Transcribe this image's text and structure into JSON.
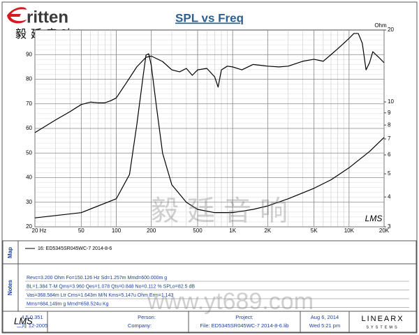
{
  "chart_data": {
    "type": "line",
    "title": "SPL vs Freq",
    "y2_label": "Ohm",
    "watermark": "LMS",
    "x_scale": "log",
    "y2_scale": "log",
    "grid": true,
    "minor_grid": true,
    "xlim": [
      20,
      20000
    ],
    "xticks": [
      {
        "value": 20,
        "label": "20 Hz"
      },
      50,
      100,
      200,
      500,
      {
        "value": 1000,
        "label": "1K"
      },
      {
        "value": 2000,
        "label": "2K"
      },
      {
        "value": 5000,
        "label": "5K"
      },
      {
        "value": 10000,
        "label": "10K"
      },
      {
        "value": 20000,
        "label": "20K"
      }
    ],
    "ylim": [
      20,
      100
    ],
    "yticks": [
      20,
      30,
      40,
      50,
      60,
      70,
      80,
      90
    ],
    "y2lim": [
      3,
      20
    ],
    "y2ticks": [
      3,
      4,
      5,
      6,
      7,
      8,
      9,
      10,
      20
    ],
    "series": [
      {
        "color": "#000000",
        "x": [
          20,
          30,
          40,
          50,
          60,
          70,
          80,
          90,
          100,
          120,
          150,
          180,
          200,
          250,
          300,
          350,
          400,
          450,
          500,
          600,
          700,
          750,
          800,
          900,
          1000,
          1200,
          1500,
          2000,
          2500,
          3000,
          4000,
          5000,
          6000,
          7000,
          8000,
          9000,
          10000,
          11000,
          12000,
          13000,
          14000,
          15000,
          16000,
          18000,
          20000
        ],
        "values": [
          58.3,
          63.4,
          66.8,
          69.7,
          70.7,
          70.4,
          70.4,
          71.3,
          72.4,
          78,
          85,
          88.9,
          89.4,
          87.2,
          83.8,
          83,
          84.4,
          81.6,
          83.8,
          84.4,
          81,
          76.8,
          83.8,
          85.3,
          85,
          83.8,
          86,
          85.3,
          85,
          85.3,
          87.3,
          88.1,
          87.3,
          90,
          92.4,
          94.6,
          96.6,
          98.6,
          98.6,
          94.6,
          83.8,
          86.7,
          91.2,
          88.9,
          86.7
        ]
      },
      {
        "color": "#000000",
        "axis": "y2",
        "x": [
          20,
          50,
          100,
          130,
          150,
          170,
          180,
          190,
          200,
          220,
          250,
          300,
          400,
          500,
          700,
          1000,
          1500,
          2000,
          3000,
          5000,
          7000,
          10000,
          15000,
          20000
        ],
        "values": [
          3.27,
          3.44,
          3.93,
          4.97,
          8.0,
          12.8,
          15.7,
          15.9,
          14.2,
          9.8,
          6.1,
          4.5,
          3.8,
          3.55,
          3.44,
          3.44,
          3.55,
          3.67,
          3.93,
          4.35,
          4.72,
          5.3,
          6.2,
          7.1
        ]
      }
    ]
  },
  "logo": {
    "brand": "ritten",
    "chinese": "毅廷音响"
  },
  "watermarks": {
    "chinese": "毅廷音响",
    "site": "www.yt689.com"
  },
  "map": {
    "label": "Map",
    "legend": "16: ED5345SR045WC-7   2014-8-6"
  },
  "notes": {
    "label": "Notes",
    "lines": [
      "Revc=3.200 Ohm   Fo=150.126 Hz   Sd=1.257m   Mmd=600.000m g",
      "BL=1.384 T·M   Qms=3.960   Qes=1.078   Qts=0.848   No=0.112 %   SPLo=82.5 dB",
      "Vas=368.584m Ltr   Cms=1.643m M/N   Kms=5.147u Ohm   Erm=1.143",
      "Mms=684.149m g   Mmd=658.524u Kg"
    ]
  },
  "footer": {
    "app": "LMS",
    "version": "4.5.0.351",
    "build": "二月 12-2005",
    "person": "Person:",
    "company": "Company:",
    "project": "Project:",
    "file": "File: ED5345SR045WC-7   2014-8-6.lib",
    "date": "Aug  6, 2014",
    "time": "Wed  5:21 pm",
    "maker": "LINEARX",
    "maker_sub": "SYSTEMS"
  }
}
